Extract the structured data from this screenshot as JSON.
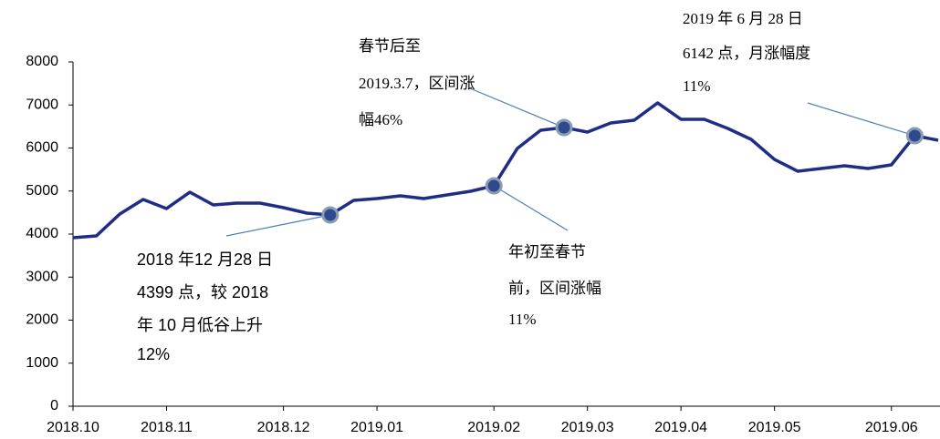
{
  "chart_data": {
    "type": "line",
    "categories": [
      "2018.10",
      null,
      null,
      null,
      "2018.11",
      null,
      null,
      null,
      null,
      "2018.12",
      null,
      null,
      null,
      "2019.01",
      null,
      null,
      null,
      null,
      "2019.02",
      null,
      null,
      null,
      "2019.03",
      null,
      null,
      null,
      "2019.04",
      null,
      null,
      null,
      "2019.05",
      null,
      null,
      null,
      null,
      "2019.06",
      null,
      null
    ],
    "series": [
      {
        "name": null,
        "color": "#1f2d86",
        "values": [
          3915,
          3958,
          4466,
          4804,
          4593,
          4974,
          4677,
          4720,
          4720,
          4614,
          4487,
          4444,
          4783,
          4825,
          4889,
          4825,
          4910,
          4995,
          5122,
          5989,
          6413,
          6476,
          6370,
          6582,
          6645,
          7048,
          6667,
          6667,
          6455,
          6201,
          5735,
          5460,
          5524,
          5587,
          5524,
          5608,
          6286,
          6180
        ]
      }
    ],
    "ylim": [
      0,
      8000
    ],
    "yticks": [
      0,
      1000,
      2000,
      3000,
      4000,
      5000,
      6000,
      7000,
      8000
    ],
    "grid": false,
    "annotations": [
      {
        "point": 21,
        "lines": [
          "春节后至",
          "2019.3.7，区间涨",
          "幅46%"
        ]
      },
      {
        "point": 36,
        "lines": [
          "2019 年 6 月 28 日",
          "6142 点，月涨幅度",
          "11%"
        ]
      },
      {
        "point": 11,
        "lines": [
          "2018 年12 月28 日",
          "4399 点，较 2018",
          "年 10 月低谷上升",
          "12%"
        ]
      },
      {
        "point": 18,
        "lines": [
          "年初至春节",
          "前，区间涨幅",
          "11%"
        ]
      }
    ]
  }
}
